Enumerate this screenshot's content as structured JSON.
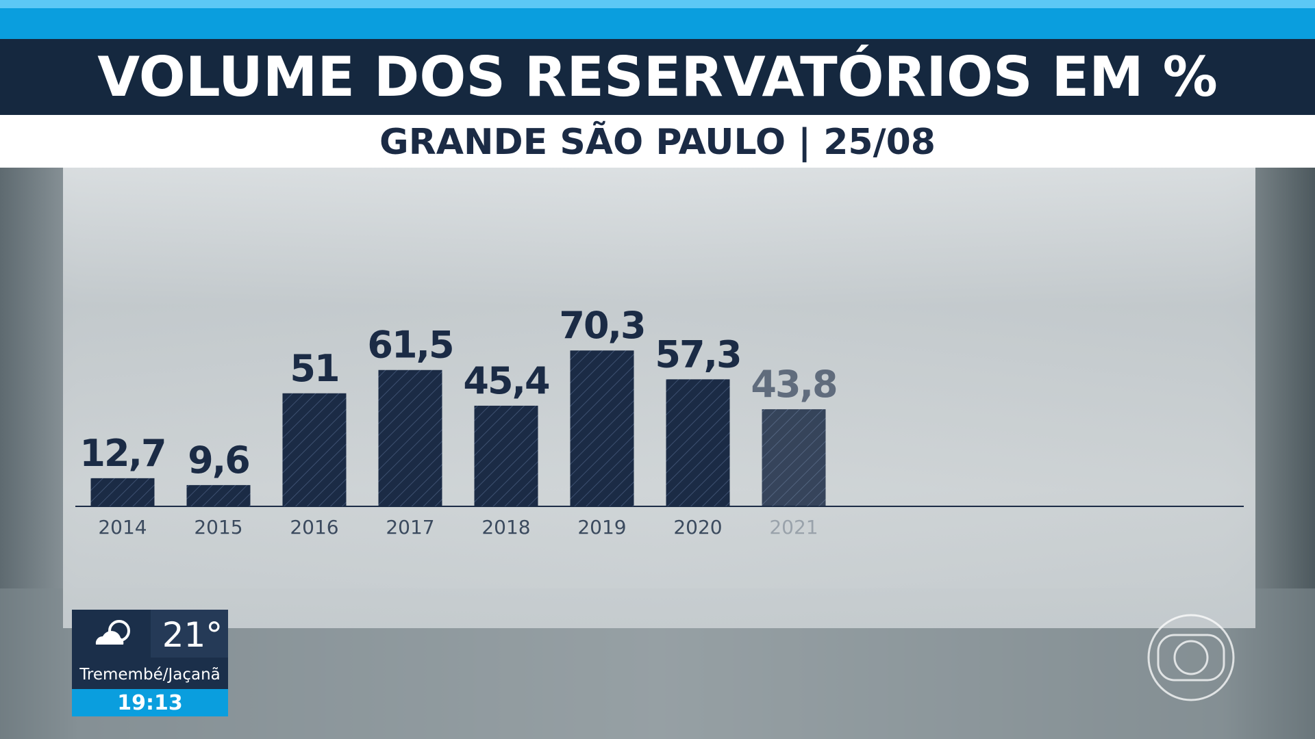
{
  "chart_data": {
    "type": "bar",
    "title": "VOLUME DOS RESERVATÓRIOS EM %",
    "subtitle": "GRANDE SÃO PAULO | 25/08",
    "categories": [
      "2014",
      "2015",
      "2016",
      "2017",
      "2018",
      "2019",
      "2020",
      "2021"
    ],
    "values": [
      12.7,
      9.6,
      51,
      61.5,
      45.4,
      70.3,
      57.3,
      43.8
    ],
    "value_labels": [
      "12,7",
      "9,6",
      "51",
      "61,5",
      "45,4",
      "70,3",
      "57,3",
      "43,8"
    ],
    "color": "#1b2b45"
  },
  "weather": {
    "temperature": "21°",
    "location": "Tremembé/Jaçanã",
    "time": "19:13"
  }
}
